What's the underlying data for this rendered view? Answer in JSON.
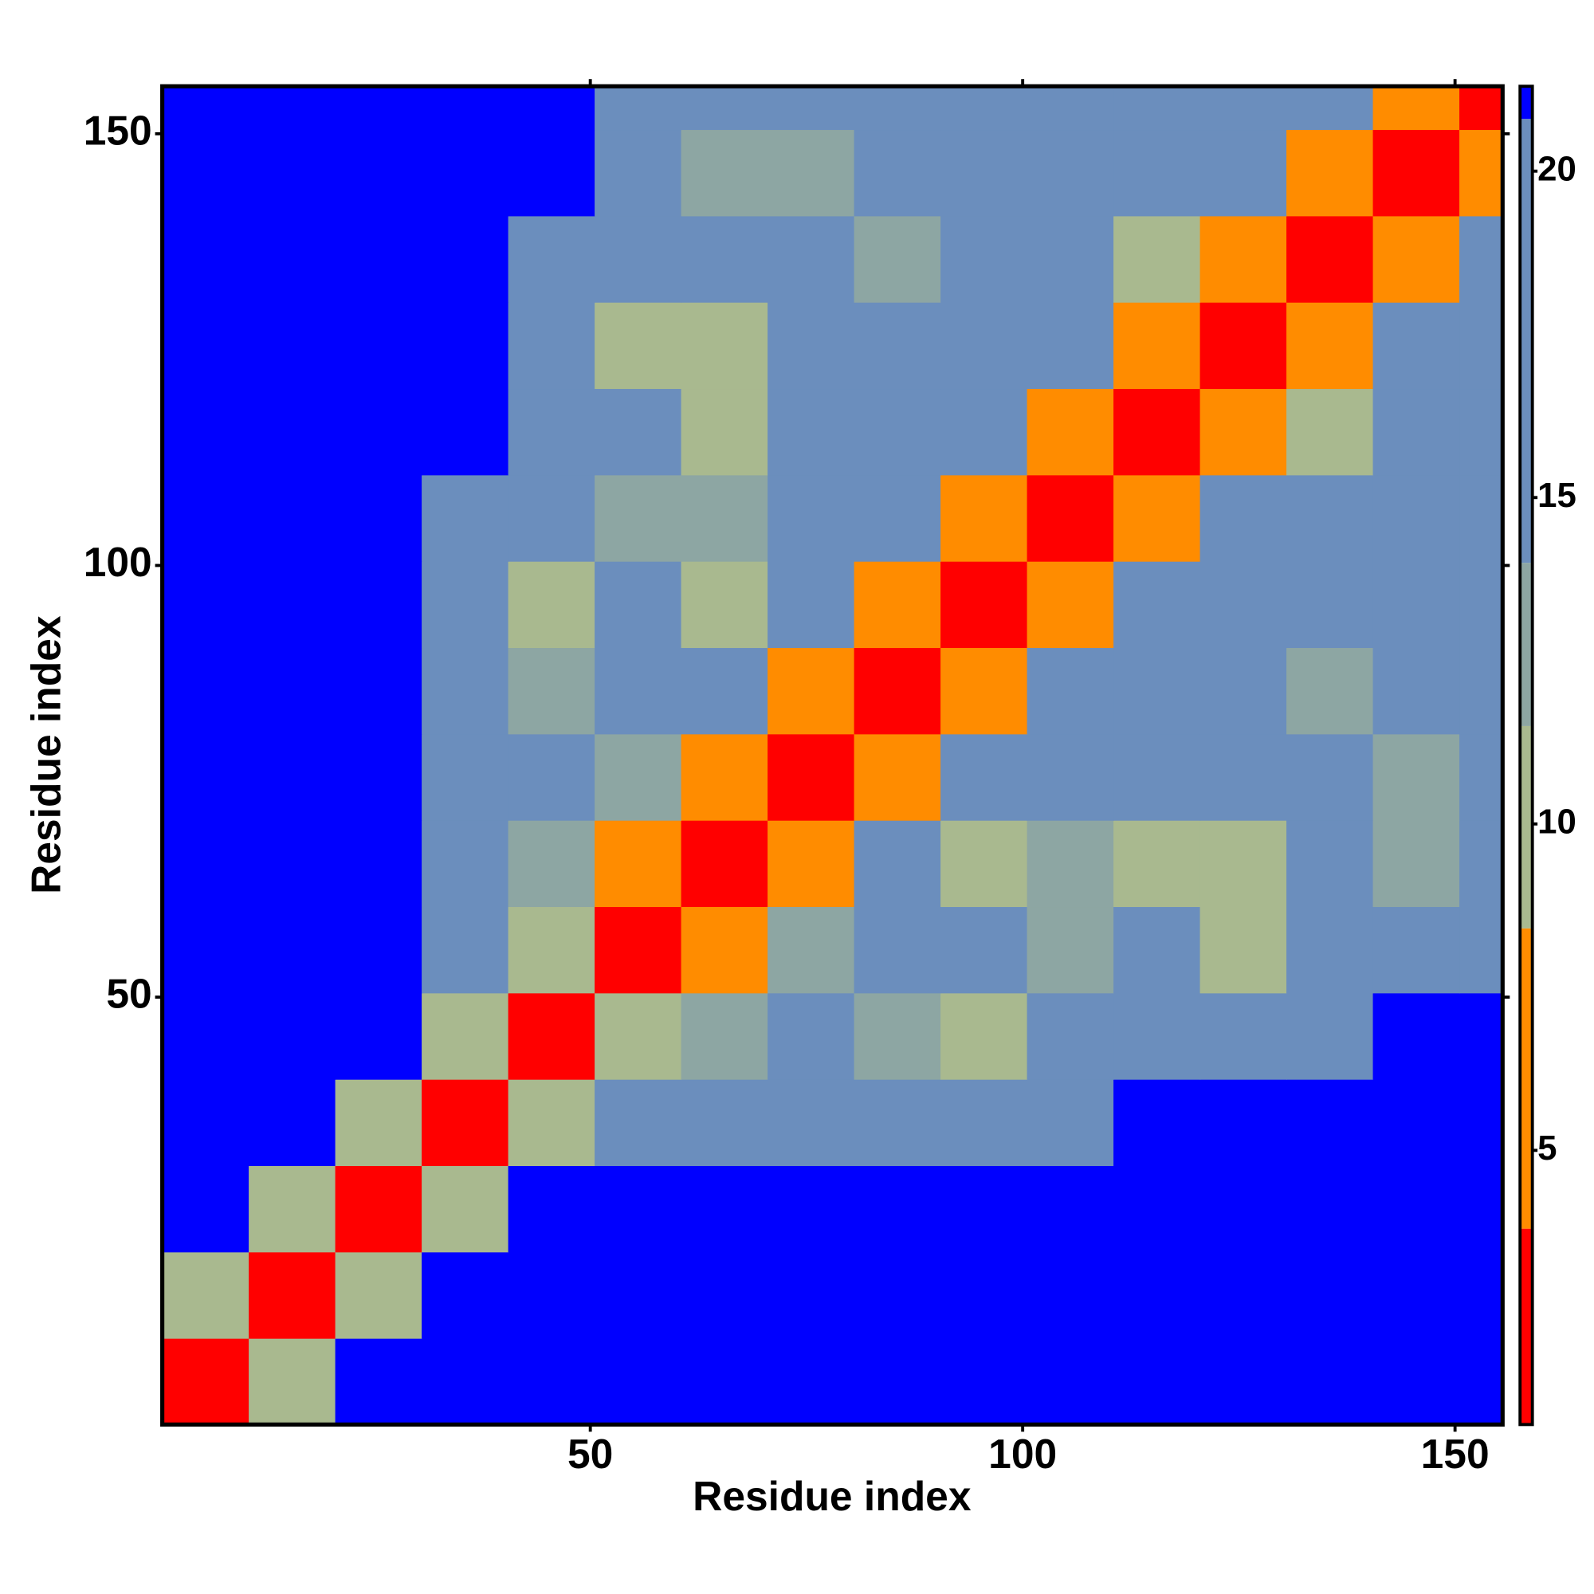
{
  "chart_data": {
    "type": "heatmap",
    "x_label": "Residue index",
    "y_label": "Residue index",
    "x_edges": [
      0.5,
      10.5,
      20.5,
      30.5,
      40.5,
      50.5,
      60.5,
      70.5,
      80.5,
      90.5,
      100.5,
      110.5,
      120.5,
      130.5,
      140.5,
      150.5,
      155.5
    ],
    "y_edges": [
      0.5,
      10.5,
      20.5,
      30.5,
      40.5,
      50.5,
      60.5,
      70.5,
      80.5,
      90.5,
      100.5,
      110.5,
      120.5,
      130.5,
      140.5,
      150.5,
      155.5
    ],
    "z": [
      [
        3,
        11,
        21,
        21,
        21,
        21,
        21,
        21,
        21,
        21,
        21,
        21,
        21,
        21,
        21,
        21
      ],
      [
        11,
        3,
        10,
        21,
        21,
        21,
        21,
        21,
        21,
        21,
        21,
        21,
        21,
        21,
        21,
        21
      ],
      [
        21,
        10,
        3,
        11,
        21,
        21,
        21,
        21,
        21,
        21,
        21,
        21,
        21,
        21,
        21,
        21
      ],
      [
        21,
        21,
        11,
        3,
        10,
        16,
        17,
        17,
        17,
        17,
        20,
        21,
        21,
        21,
        21,
        21
      ],
      [
        21,
        21,
        21,
        10,
        3,
        9,
        13,
        15,
        12,
        10,
        14,
        16,
        18,
        19,
        21,
        21
      ],
      [
        21,
        21,
        21,
        16,
        9,
        3,
        8,
        12,
        17,
        15,
        13,
        15,
        11,
        15,
        18,
        18
      ],
      [
        21,
        21,
        21,
        17,
        13,
        8,
        3,
        7,
        14,
        11,
        13,
        10,
        11,
        16,
        12,
        15
      ],
      [
        21,
        21,
        21,
        17,
        15,
        12,
        7,
        3,
        7,
        14,
        18,
        14,
        18,
        14,
        13,
        17
      ],
      [
        21,
        21,
        21,
        17,
        12,
        17,
        14,
        7,
        3,
        8,
        15,
        17,
        19,
        12,
        14,
        17
      ],
      [
        21,
        21,
        21,
        17,
        10,
        15,
        11,
        14,
        8,
        3,
        8,
        19,
        18,
        16,
        15,
        15
      ],
      [
        21,
        21,
        21,
        20,
        14,
        13,
        13,
        18,
        15,
        8,
        3,
        8,
        15,
        14,
        15,
        16
      ],
      [
        21,
        21,
        21,
        21,
        16,
        15,
        10,
        14,
        17,
        19,
        8,
        3,
        8,
        10,
        14,
        15
      ],
      [
        21,
        21,
        21,
        21,
        18,
        11,
        11,
        18,
        19,
        18,
        15,
        8,
        3,
        8,
        15,
        18
      ],
      [
        21,
        21,
        21,
        21,
        19,
        15,
        16,
        14,
        12,
        16,
        14,
        10,
        8,
        3,
        8,
        14
      ],
      [
        21,
        21,
        21,
        21,
        21,
        18,
        12,
        13,
        14,
        15,
        15,
        14,
        15,
        8,
        3,
        8
      ],
      [
        21,
        21,
        21,
        21,
        21,
        18,
        15,
        17,
        17,
        15,
        16,
        15,
        18,
        14,
        8,
        3
      ]
    ],
    "xlim": [
      0.5,
      155.5
    ],
    "ylim": [
      0.5,
      155.5
    ],
    "xticks": [
      50,
      100,
      150
    ],
    "yticks": [
      50,
      100,
      150
    ],
    "clim": [
      0.8,
      21.3
    ],
    "cticks": [
      5,
      10,
      15,
      20
    ],
    "colorscale": [
      [
        0.8,
        "#ff0000"
      ],
      [
        3.8,
        "#ff8c00"
      ],
      [
        8.4,
        "#a9b98f"
      ],
      [
        11.5,
        "#8da6a3"
      ],
      [
        14,
        "#6b8ebd"
      ],
      [
        20.8,
        "#0000ff"
      ]
    ]
  }
}
